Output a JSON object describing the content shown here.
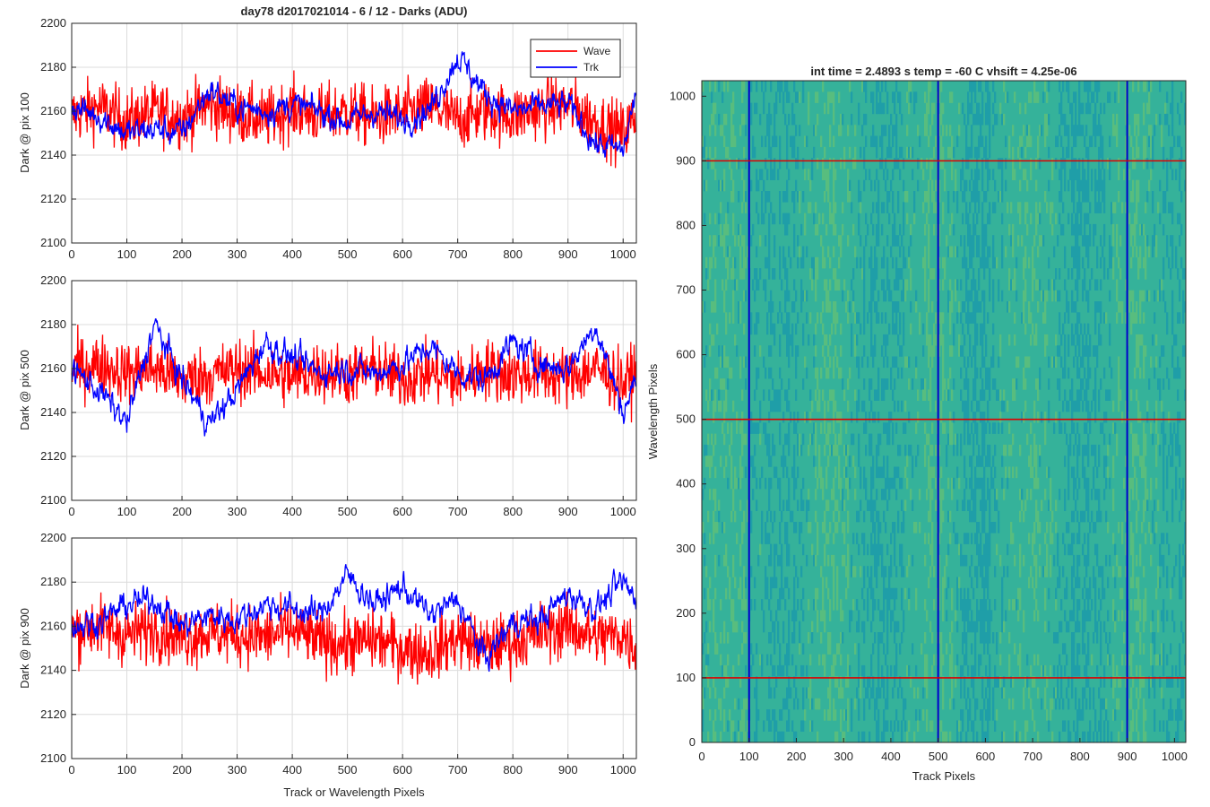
{
  "figure": {
    "title": "day78 d2017021014 - 6 / 12 - Darks (ADU)",
    "image_title": "int time = 2.4893 s    temp = -60 C    vhsift = 4.25e-06"
  },
  "chart_data": [
    {
      "type": "line",
      "title": "day78 d2017021014 - 6 / 12 - Darks (ADU)",
      "xlabel": "",
      "ylabel": "Dark @ pix 100",
      "xlim": [
        0,
        1024
      ],
      "ylim": [
        2100,
        2200
      ],
      "xticks": [
        0,
        100,
        200,
        300,
        400,
        500,
        600,
        700,
        800,
        900,
        1000
      ],
      "yticks": [
        2100,
        2120,
        2140,
        2160,
        2180,
        2200
      ],
      "grid": true,
      "legend": {
        "position": "top-right",
        "entries": [
          "Wave",
          "Trk"
        ]
      },
      "series": [
        {
          "name": "Wave",
          "color": "#ff0000",
          "x": [
            0,
            50,
            100,
            150,
            200,
            250,
            300,
            350,
            400,
            450,
            500,
            550,
            600,
            650,
            700,
            750,
            800,
            850,
            900,
            950,
            1000,
            1023
          ],
          "values": [
            2158,
            2162,
            2155,
            2160,
            2157,
            2163,
            2159,
            2156,
            2161,
            2158,
            2160,
            2157,
            2159,
            2162,
            2156,
            2160,
            2158,
            2161,
            2163,
            2155,
            2150,
            2158
          ]
        },
        {
          "name": "Trk",
          "color": "#0000ff",
          "x": [
            0,
            50,
            100,
            150,
            200,
            250,
            300,
            350,
            400,
            450,
            500,
            550,
            600,
            650,
            700,
            750,
            800,
            850,
            900,
            950,
            1000,
            1023
          ],
          "values": [
            2162,
            2158,
            2150,
            2152,
            2150,
            2170,
            2162,
            2160,
            2163,
            2160,
            2155,
            2160,
            2156,
            2161,
            2185,
            2168,
            2160,
            2162,
            2163,
            2145,
            2142,
            2168
          ]
        }
      ]
    },
    {
      "type": "line",
      "title": "",
      "xlabel": "",
      "ylabel": "Dark @ pix 500",
      "xlim": [
        0,
        1024
      ],
      "ylim": [
        2100,
        2200
      ],
      "xticks": [
        0,
        100,
        200,
        300,
        400,
        500,
        600,
        700,
        800,
        900,
        1000
      ],
      "yticks": [
        2100,
        2120,
        2140,
        2160,
        2180,
        2200
      ],
      "grid": true,
      "series": [
        {
          "name": "Wave",
          "color": "#ff0000",
          "x": [
            0,
            50,
            100,
            150,
            200,
            250,
            300,
            350,
            400,
            450,
            500,
            550,
            600,
            650,
            700,
            750,
            800,
            850,
            900,
            950,
            1000,
            1023
          ],
          "values": [
            2160,
            2162,
            2158,
            2160,
            2155,
            2157,
            2160,
            2158,
            2156,
            2159,
            2157,
            2160,
            2155,
            2158,
            2154,
            2160,
            2157,
            2158,
            2156,
            2160,
            2153,
            2158
          ]
        },
        {
          "name": "Trk",
          "color": "#0000ff",
          "x": [
            0,
            50,
            100,
            150,
            200,
            250,
            300,
            350,
            400,
            450,
            500,
            550,
            600,
            650,
            700,
            750,
            800,
            850,
            900,
            950,
            1000,
            1023
          ],
          "values": [
            2160,
            2150,
            2135,
            2180,
            2155,
            2135,
            2150,
            2172,
            2165,
            2158,
            2160,
            2158,
            2162,
            2170,
            2158,
            2155,
            2172,
            2162,
            2160,
            2180,
            2140,
            2155
          ]
        }
      ]
    },
    {
      "type": "line",
      "title": "",
      "xlabel": "Track or Wavelength Pixels",
      "ylabel": "Dark @ pix 900",
      "xlim": [
        0,
        1024
      ],
      "ylim": [
        2100,
        2200
      ],
      "xticks": [
        0,
        100,
        200,
        300,
        400,
        500,
        600,
        700,
        800,
        900,
        1000
      ],
      "yticks": [
        2100,
        2120,
        2140,
        2160,
        2180,
        2200
      ],
      "grid": true,
      "series": [
        {
          "name": "Wave",
          "color": "#ff0000",
          "x": [
            0,
            50,
            100,
            150,
            200,
            250,
            300,
            350,
            400,
            450,
            500,
            550,
            600,
            650,
            700,
            750,
            800,
            850,
            900,
            950,
            1000,
            1023
          ],
          "values": [
            2158,
            2160,
            2156,
            2159,
            2155,
            2157,
            2156,
            2155,
            2158,
            2153,
            2152,
            2154,
            2150,
            2148,
            2155,
            2150,
            2153,
            2157,
            2160,
            2155,
            2156,
            2150
          ]
        },
        {
          "name": "Trk",
          "color": "#0000ff",
          "x": [
            0,
            50,
            100,
            150,
            200,
            250,
            300,
            350,
            400,
            450,
            500,
            550,
            600,
            650,
            700,
            750,
            800,
            850,
            900,
            950,
            1000,
            1023
          ],
          "values": [
            2160,
            2162,
            2170,
            2172,
            2160,
            2165,
            2163,
            2170,
            2168,
            2165,
            2183,
            2170,
            2178,
            2165,
            2172,
            2145,
            2162,
            2163,
            2175,
            2168,
            2180,
            2172
          ]
        }
      ]
    },
    {
      "type": "heatmap",
      "title": "int time = 2.4893 s    temp = -60 C    vhsift = 4.25e-06",
      "xlabel": "Track Pixels",
      "ylabel": "Wavelength Pixels",
      "xlim": [
        0,
        1024
      ],
      "ylim": [
        0,
        1024
      ],
      "xticks": [
        0,
        100,
        200,
        300,
        400,
        500,
        600,
        700,
        800,
        900,
        1000
      ],
      "yticks": [
        0,
        100,
        200,
        300,
        400,
        500,
        600,
        700,
        800,
        900,
        1000
      ],
      "colormap": [
        "#1f9ea8",
        "#35b29a",
        "#58bd7e",
        "#86c45f"
      ],
      "vertical_markers": {
        "color": "#0000cc",
        "x": [
          100,
          500,
          900
        ]
      },
      "horizontal_markers": {
        "color": "#dd0000",
        "y": [
          100,
          500,
          900
        ]
      }
    }
  ]
}
